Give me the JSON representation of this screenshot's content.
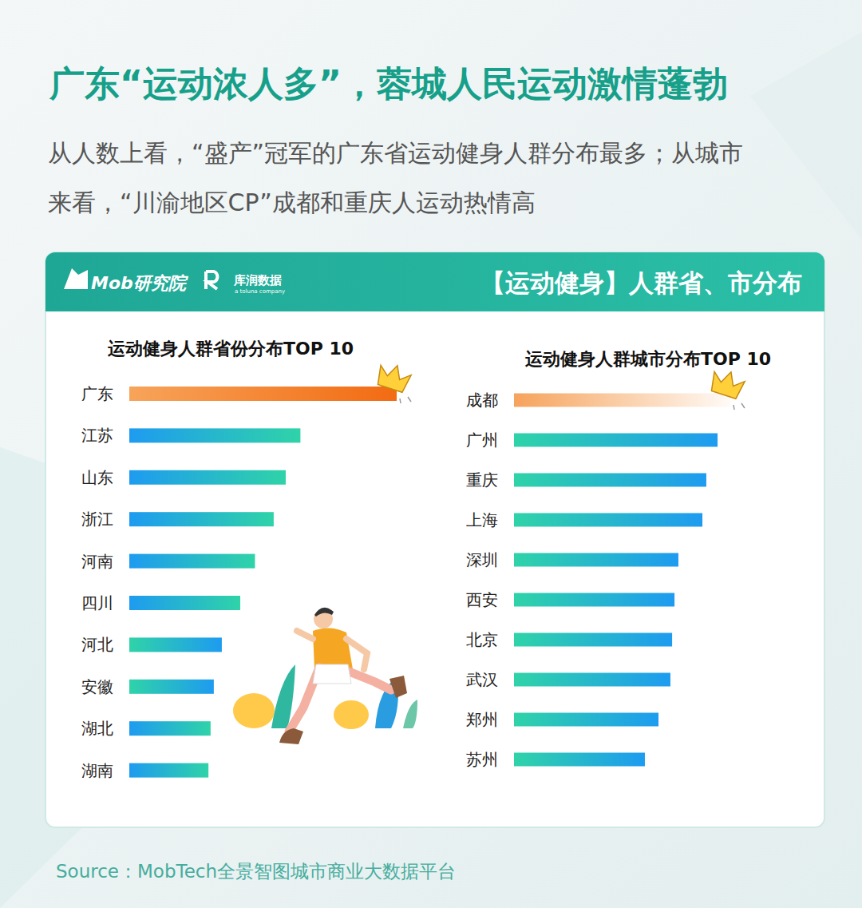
{
  "header": {
    "title": "广东“运动浓人多”，蓉城人民运动激情蓬勃",
    "subtitle_lines": [
      "从人数上看，“盛产”冠军的广东省运动健身人群分布最多；从城市",
      "来看，“川渝地区CP”成都和重庆人运动热情高"
    ]
  },
  "panel": {
    "logo_mob": "Mob研究院",
    "logo_kurun": "库润数据",
    "logo_kurun_sub": "a toluna company",
    "title": "【运动健身】人群省、市分布"
  },
  "source": "Source：MobTech全景智图城市商业大数据平台",
  "chart_data": [
    {
      "type": "bar",
      "orientation": "horizontal",
      "title": "运动健身人群省份分布TOP 10",
      "categories": [
        "广东",
        "江苏",
        "山东",
        "浙江",
        "河南",
        "四川",
        "河北",
        "安徽",
        "湖北",
        "湖南"
      ],
      "values": [
        100,
        64,
        58.5,
        54,
        47,
        41.5,
        34.6,
        31.6,
        30.4,
        29.6
      ],
      "colors": [
        "#f7a45a",
        "#1e9bf0",
        "#1e9bf0",
        "#1e9bf0",
        "#1e9bf0",
        "#1e9bf0",
        "#2fd3a8",
        "#2fd3a8",
        "#1e9bf0",
        "#1e9bf0"
      ],
      "xlim": [
        0,
        100
      ],
      "tick_labels": false
    },
    {
      "type": "bar",
      "orientation": "horizontal",
      "title": "运动健身人群城市分布TOP 10",
      "categories": [
        "成都",
        "广州",
        "重庆",
        "上海",
        "深圳",
        "西安",
        "北京",
        "武汉",
        "郑州",
        "苏州"
      ],
      "values": [
        100,
        94.1,
        88.9,
        87.1,
        76,
        74.2,
        73.1,
        72.3,
        66.8,
        60.5
      ],
      "colors": [
        "#f6a35c",
        "#2fd3a8",
        "#2fd3a8",
        "#2fd3a8",
        "#2fd3a8",
        "#2fd3a8",
        "#2fd3a8",
        "#2fd3a8",
        "#2fd3a8",
        "#2fd3a8"
      ],
      "xlim": [
        0,
        100
      ],
      "tick_labels": false
    }
  ]
}
